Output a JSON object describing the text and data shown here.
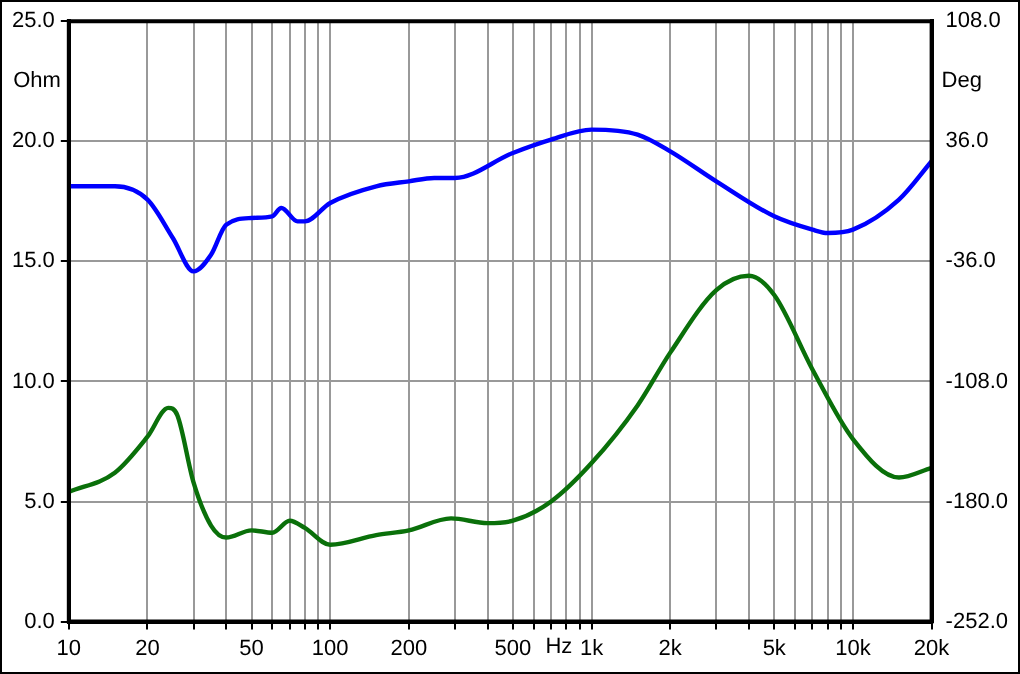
{
  "chart_data": {
    "type": "line",
    "xlabel": "Hz",
    "ylabel": "Ohm",
    "y2label": "Deg",
    "log": "x",
    "grid": true,
    "legend": false,
    "marker": "none",
    "line_style": "solid",
    "xlim": [
      10,
      20000
    ],
    "ylim": [
      0,
      25
    ],
    "y2lim": [
      -252,
      108
    ],
    "xticks": [
      10,
      20,
      {
        "value": 30,
        "label": null
      },
      {
        "value": 40,
        "label": null
      },
      50,
      {
        "value": 60,
        "label": null
      },
      {
        "value": 70,
        "label": null
      },
      {
        "value": 80,
        "label": null
      },
      {
        "value": 90,
        "label": null
      },
      100,
      200,
      {
        "value": 300,
        "label": null
      },
      {
        "value": 400,
        "label": null
      },
      500,
      {
        "value": 600,
        "label": null
      },
      {
        "value": 700,
        "label": null
      },
      {
        "value": 800,
        "label": null
      },
      {
        "value": 900,
        "label": null
      },
      {
        "value": 1000,
        "label": "1k"
      },
      {
        "value": 2000,
        "label": "2k"
      },
      {
        "value": 3000,
        "label": null
      },
      {
        "value": 4000,
        "label": null
      },
      {
        "value": 5000,
        "label": "5k"
      },
      {
        "value": 6000,
        "label": null
      },
      {
        "value": 7000,
        "label": null
      },
      {
        "value": 8000,
        "label": null
      },
      {
        "value": 9000,
        "label": null
      },
      {
        "value": 10000,
        "label": "10k"
      },
      {
        "value": 20000,
        "label": "20k"
      }
    ],
    "yticks": [
      {
        "value": 0,
        "label": "0.0"
      },
      {
        "value": 5,
        "label": "5.0"
      },
      {
        "value": 10,
        "label": "10.0"
      },
      {
        "value": 15,
        "label": "15.0"
      },
      {
        "value": 20,
        "label": "20.0"
      },
      {
        "value": 25,
        "label": "25.0"
      }
    ],
    "y2ticks": [
      {
        "value": -252,
        "label": "-252.0"
      },
      {
        "value": -180,
        "label": "-180.0"
      },
      {
        "value": -108,
        "label": "-108.0"
      },
      {
        "value": -36,
        "label": "-36.0"
      },
      {
        "value": 36,
        "label": "36.0"
      },
      {
        "value": 108,
        "label": "108.0"
      }
    ],
    "series": [
      {
        "color": "#0a700a",
        "x": [
          10,
          15,
          20,
          24,
          26,
          30,
          35,
          40,
          50,
          60,
          70,
          80,
          100,
          150,
          200,
          290,
          400,
          500,
          700,
          1000,
          1500,
          2000,
          3000,
          4000,
          5000,
          7000,
          10000,
          15000,
          20000
        ],
        "values": [
          5.4,
          6.2,
          7.7,
          8.9,
          8.6,
          5.8,
          4.0,
          3.5,
          3.8,
          3.7,
          4.2,
          3.9,
          3.2,
          3.6,
          3.8,
          4.3,
          4.1,
          4.2,
          5.0,
          6.6,
          9.0,
          11.2,
          13.8,
          14.4,
          13.6,
          10.5,
          7.6,
          6.0,
          6.4
        ]
      },
      {
        "color": "#0000ff",
        "axis": "y2",
        "x": [
          10,
          15,
          20,
          25,
          30,
          35,
          40,
          50,
          60,
          65,
          75,
          80,
          100,
          150,
          200,
          250,
          300,
          500,
          700,
          1000,
          1500,
          2000,
          3000,
          5000,
          7000,
          8000,
          10000,
          15000,
          20000
        ],
        "values": [
          9,
          9,
          1,
          -22,
          -42,
          -32,
          -14,
          -10,
          -9,
          -4,
          -12,
          -12,
          -1,
          9,
          12,
          14,
          14,
          29,
          37,
          43,
          40,
          30,
          12,
          -9,
          -17,
          -19,
          -17,
          1,
          24
        ]
      }
    ]
  }
}
